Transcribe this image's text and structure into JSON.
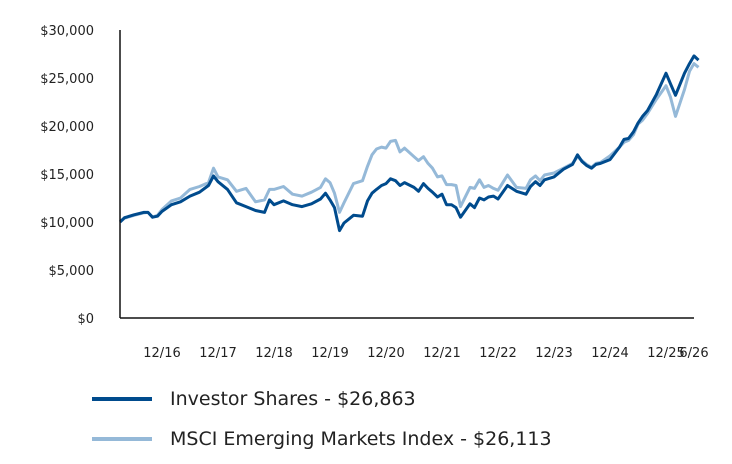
{
  "chart_data": {
    "type": "line",
    "title": "",
    "xlabel": "",
    "ylabel": "",
    "ylim": [
      0,
      30000
    ],
    "yticks": [
      "$0",
      "$5,000",
      "$10,000",
      "$15,000",
      "$20,000",
      "$25,000",
      "$30,000"
    ],
    "xlim": [
      2016.25,
      2026.5
    ],
    "xticks": [
      {
        "label": "12/16",
        "x": 2017.0
      },
      {
        "label": "12/17",
        "x": 2018.0
      },
      {
        "label": "12/18",
        "x": 2019.0
      },
      {
        "label": "12/19",
        "x": 2020.0
      },
      {
        "label": "12/20",
        "x": 2021.0
      },
      {
        "label": "12/21",
        "x": 2022.0
      },
      {
        "label": "12/22",
        "x": 2023.0
      },
      {
        "label": "12/23",
        "x": 2024.0
      },
      {
        "label": "12/24",
        "x": 2025.0
      },
      {
        "label": "12/25",
        "x": 2026.0
      },
      {
        "label": "6/26",
        "x": 2026.5
      }
    ],
    "grid": false,
    "legend_position": "bottom",
    "series": [
      {
        "name": "Investor Shares - $26,863",
        "color": "#004b8d",
        "points": [
          [
            2016.25,
            10000
          ],
          [
            2016.33,
            10450
          ],
          [
            2016.5,
            10750
          ],
          [
            2016.67,
            11000
          ],
          [
            2016.75,
            11000
          ],
          [
            2016.83,
            10500
          ],
          [
            2016.92,
            10600
          ],
          [
            2017.0,
            11100
          ],
          [
            2017.17,
            11800
          ],
          [
            2017.33,
            12100
          ],
          [
            2017.5,
            12700
          ],
          [
            2017.67,
            13100
          ],
          [
            2017.83,
            13800
          ],
          [
            2017.92,
            14800
          ],
          [
            2018.0,
            14200
          ],
          [
            2018.17,
            13400
          ],
          [
            2018.33,
            12000
          ],
          [
            2018.5,
            11600
          ],
          [
            2018.67,
            11200
          ],
          [
            2018.83,
            11000
          ],
          [
            2018.92,
            12300
          ],
          [
            2019.0,
            11800
          ],
          [
            2019.17,
            12200
          ],
          [
            2019.33,
            11800
          ],
          [
            2019.5,
            11600
          ],
          [
            2019.67,
            11900
          ],
          [
            2019.83,
            12400
          ],
          [
            2019.92,
            13000
          ],
          [
            2020.0,
            12300
          ],
          [
            2020.08,
            11500
          ],
          [
            2020.17,
            9100
          ],
          [
            2020.25,
            9900
          ],
          [
            2020.42,
            10700
          ],
          [
            2020.58,
            10600
          ],
          [
            2020.67,
            12200
          ],
          [
            2020.75,
            13000
          ],
          [
            2020.83,
            13400
          ],
          [
            2020.92,
            13800
          ],
          [
            2021.0,
            14000
          ],
          [
            2021.08,
            14500
          ],
          [
            2021.17,
            14300
          ],
          [
            2021.25,
            13800
          ],
          [
            2021.33,
            14100
          ],
          [
            2021.5,
            13600
          ],
          [
            2021.58,
            13200
          ],
          [
            2021.67,
            14000
          ],
          [
            2021.75,
            13500
          ],
          [
            2021.83,
            13100
          ],
          [
            2021.92,
            12600
          ],
          [
            2022.0,
            12900
          ],
          [
            2022.08,
            11800
          ],
          [
            2022.17,
            11800
          ],
          [
            2022.25,
            11500
          ],
          [
            2022.33,
            10500
          ],
          [
            2022.5,
            11900
          ],
          [
            2022.58,
            11500
          ],
          [
            2022.67,
            12500
          ],
          [
            2022.75,
            12300
          ],
          [
            2022.83,
            12600
          ],
          [
            2022.92,
            12700
          ],
          [
            2023.0,
            12400
          ],
          [
            2023.17,
            13800
          ],
          [
            2023.33,
            13200
          ],
          [
            2023.5,
            12900
          ],
          [
            2023.58,
            13700
          ],
          [
            2023.67,
            14200
          ],
          [
            2023.75,
            13800
          ],
          [
            2023.83,
            14400
          ],
          [
            2024.0,
            14700
          ],
          [
            2024.17,
            15500
          ],
          [
            2024.33,
            16000
          ],
          [
            2024.42,
            17000
          ],
          [
            2024.5,
            16300
          ],
          [
            2024.58,
            15900
          ],
          [
            2024.67,
            15600
          ],
          [
            2024.75,
            16000
          ],
          [
            2024.83,
            16100
          ],
          [
            2025.0,
            16500
          ],
          [
            2025.17,
            17800
          ],
          [
            2025.25,
            18600
          ],
          [
            2025.33,
            18700
          ],
          [
            2025.42,
            19400
          ],
          [
            2025.5,
            20300
          ],
          [
            2025.58,
            21000
          ],
          [
            2025.67,
            21600
          ],
          [
            2025.83,
            23300
          ],
          [
            2026.0,
            25500
          ],
          [
            2026.08,
            24400
          ],
          [
            2026.17,
            23200
          ],
          [
            2026.33,
            25500
          ],
          [
            2026.42,
            26500
          ],
          [
            2026.5,
            27300
          ],
          [
            2026.58,
            26863
          ]
        ]
      },
      {
        "name": "MSCI Emerging Markets Index - $26,113",
        "color": "#95b9d8",
        "points": [
          [
            2016.25,
            10000
          ],
          [
            2016.33,
            10400
          ],
          [
            2016.5,
            10700
          ],
          [
            2016.67,
            10950
          ],
          [
            2016.75,
            11000
          ],
          [
            2016.83,
            10500
          ],
          [
            2016.92,
            10700
          ],
          [
            2017.0,
            11300
          ],
          [
            2017.17,
            12200
          ],
          [
            2017.33,
            12500
          ],
          [
            2017.5,
            13400
          ],
          [
            2017.67,
            13700
          ],
          [
            2017.83,
            14100
          ],
          [
            2017.92,
            15600
          ],
          [
            2018.0,
            14700
          ],
          [
            2018.17,
            14400
          ],
          [
            2018.33,
            13200
          ],
          [
            2018.5,
            13500
          ],
          [
            2018.67,
            12100
          ],
          [
            2018.83,
            12300
          ],
          [
            2018.92,
            13400
          ],
          [
            2019.0,
            13400
          ],
          [
            2019.17,
            13700
          ],
          [
            2019.33,
            12900
          ],
          [
            2019.5,
            12700
          ],
          [
            2019.67,
            13100
          ],
          [
            2019.83,
            13600
          ],
          [
            2019.92,
            14500
          ],
          [
            2020.0,
            14100
          ],
          [
            2020.08,
            13000
          ],
          [
            2020.17,
            11000
          ],
          [
            2020.25,
            12000
          ],
          [
            2020.42,
            14000
          ],
          [
            2020.58,
            14300
          ],
          [
            2020.67,
            15800
          ],
          [
            2020.75,
            17000
          ],
          [
            2020.83,
            17600
          ],
          [
            2020.92,
            17800
          ],
          [
            2021.0,
            17700
          ],
          [
            2021.08,
            18400
          ],
          [
            2021.17,
            18500
          ],
          [
            2021.25,
            17300
          ],
          [
            2021.33,
            17700
          ],
          [
            2021.5,
            16800
          ],
          [
            2021.58,
            16400
          ],
          [
            2021.67,
            16800
          ],
          [
            2021.75,
            16100
          ],
          [
            2021.83,
            15600
          ],
          [
            2021.92,
            14700
          ],
          [
            2022.0,
            14800
          ],
          [
            2022.08,
            13900
          ],
          [
            2022.17,
            13900
          ],
          [
            2022.25,
            13800
          ],
          [
            2022.33,
            11600
          ],
          [
            2022.5,
            13600
          ],
          [
            2022.58,
            13500
          ],
          [
            2022.67,
            14400
          ],
          [
            2022.75,
            13600
          ],
          [
            2022.83,
            13800
          ],
          [
            2022.92,
            13500
          ],
          [
            2023.0,
            13300
          ],
          [
            2023.17,
            14900
          ],
          [
            2023.33,
            13600
          ],
          [
            2023.5,
            13500
          ],
          [
            2023.58,
            14400
          ],
          [
            2023.67,
            14800
          ],
          [
            2023.75,
            14300
          ],
          [
            2023.83,
            14900
          ],
          [
            2024.0,
            15100
          ],
          [
            2024.17,
            15600
          ],
          [
            2024.33,
            16100
          ],
          [
            2024.42,
            16800
          ],
          [
            2024.5,
            16400
          ],
          [
            2024.58,
            16000
          ],
          [
            2024.67,
            15700
          ],
          [
            2024.75,
            16100
          ],
          [
            2024.83,
            16200
          ],
          [
            2025.0,
            16900
          ],
          [
            2025.17,
            17800
          ],
          [
            2025.25,
            18300
          ],
          [
            2025.33,
            18500
          ],
          [
            2025.42,
            19100
          ],
          [
            2025.5,
            20200
          ],
          [
            2025.58,
            20600
          ],
          [
            2025.67,
            21300
          ],
          [
            2025.83,
            22800
          ],
          [
            2026.0,
            24200
          ],
          [
            2026.08,
            23000
          ],
          [
            2026.17,
            21000
          ],
          [
            2026.33,
            23800
          ],
          [
            2026.42,
            25700
          ],
          [
            2026.5,
            26500
          ],
          [
            2026.58,
            26113
          ]
        ]
      }
    ]
  }
}
